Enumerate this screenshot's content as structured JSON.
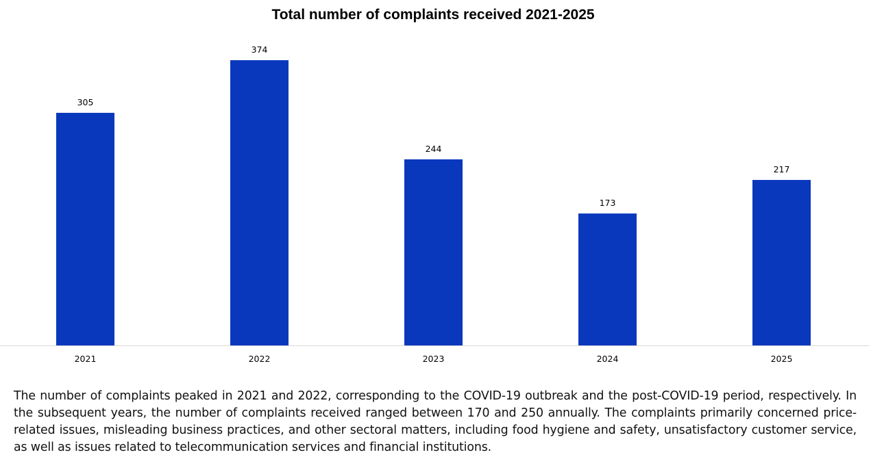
{
  "chart_data": {
    "type": "bar",
    "title": "Total number of complaints received 2021-2025",
    "categories": [
      "2021",
      "2022",
      "2023",
      "2024",
      "2025"
    ],
    "values": [
      305,
      374,
      244,
      173,
      217
    ],
    "data_labels": [
      "305",
      "374",
      "244",
      "173",
      "217"
    ],
    "xlabel": "",
    "ylabel": "",
    "ylim": [
      0,
      410
    ],
    "grid": false,
    "legend": "none",
    "bar_color": "#0a38bd"
  },
  "description": "The number of complaints peaked in 2021 and 2022, corresponding to the COVID-19 outbreak and the post-COVID-19 period, respectively. In the subsequent years, the number of complaints received ranged between 170 and 250 annually. The complaints primarily concerned price-related issues, misleading business practices, and other sectoral matters, including food hygiene and safety, unsatisfactory customer service, as well as issues related to telecommunication services and financial institutions."
}
